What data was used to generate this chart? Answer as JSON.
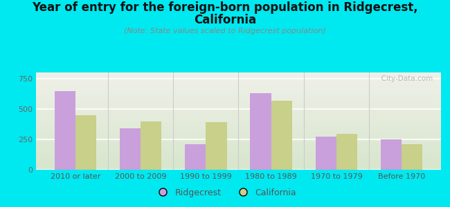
{
  "categories": [
    "2010 or later",
    "2000 to 2009",
    "1990 to 1999",
    "1980 to 1989",
    "1970 to 1979",
    "Before 1970"
  ],
  "ridgecrest": [
    648,
    340,
    210,
    628,
    270,
    250
  ],
  "california": [
    450,
    400,
    390,
    570,
    295,
    210
  ],
  "ridgecrest_color": "#c9a0dc",
  "california_color": "#c8d08a",
  "title_line1": "Year of entry for the foreign-born population in Ridgecrest,",
  "title_line2": "California",
  "subtitle": "(Note: State values scaled to Ridgecrest population)",
  "background_color": "#00e8f0",
  "plot_bg_top": "#f0f0e8",
  "plot_bg_bottom": "#d8e8d0",
  "yticks": [
    0,
    250,
    500,
    750
  ],
  "ylim": [
    0,
    800
  ],
  "bar_width": 0.32,
  "legend_ridgecrest": "Ridgecrest",
  "legend_california": "California",
  "watermark": "  City-Data.com",
  "title_fontsize": 12,
  "subtitle_fontsize": 8,
  "axis_fontsize": 8,
  "legend_fontsize": 9
}
